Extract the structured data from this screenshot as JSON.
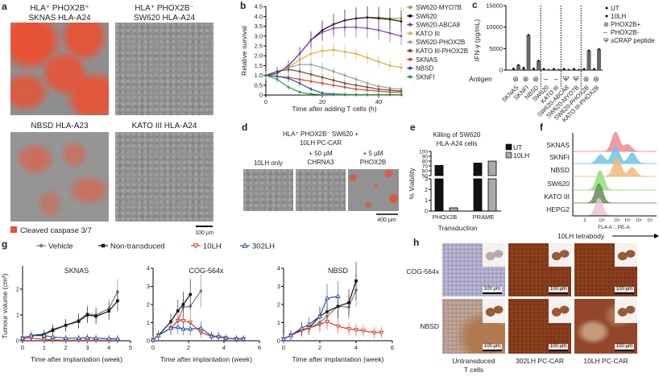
{
  "panel_labels": {
    "a": "a",
    "b": "b",
    "c": "c",
    "d": "d",
    "e": "e",
    "f": "f",
    "g": "g",
    "h": "h"
  },
  "panel_a": {
    "titles": [
      [
        "HLA⁺ PHOX2B⁺",
        "SKNAS HLA-A24"
      ],
      [
        "HLA⁺ PHOX2B⁻",
        "SW620 HLA-A24"
      ],
      [
        "NBSD HLA-A23"
      ],
      [
        "KATO III HLA-A24"
      ]
    ],
    "legend": "Cleaved caspase 3/7",
    "legend_color": "#e8502e",
    "scale_bar": "100 µm"
  },
  "panel_d": {
    "title": [
      "HLA⁺ PHOX2B⁻ SW620 +",
      "10LH  PC-CAR"
    ],
    "columns": [
      [
        "10LH only"
      ],
      [
        "+ 50 µM",
        "CHRNA3"
      ],
      [
        "+ 5 µM",
        "PHOX2B"
      ]
    ],
    "scale_bar": "400 µm"
  },
  "panel_h": {
    "rows": [
      "COG-564x",
      "NBSD"
    ],
    "columns": [
      [
        "Untransduced",
        "T cells"
      ],
      [
        "302LH PC-CAR"
      ],
      [
        "10LH PC-CAR"
      ]
    ],
    "scale_bar": "100 µm"
  },
  "chart_data": [
    {
      "id": "b",
      "type": "line",
      "xlabel": "Time after adding T cells (h)",
      "ylabel": "Relative survival",
      "xlim": [
        0,
        48
      ],
      "ylim": [
        0,
        4.5
      ],
      "xticks": [
        "0",
        "20",
        "40"
      ],
      "xtick_values": [
        0,
        20,
        40
      ],
      "yticks": [
        "0",
        "0.5",
        "1.0",
        "1.5",
        "2.0",
        "2.5",
        "3.0",
        "3.5",
        "4.0",
        "4.5"
      ],
      "ytick_values": [
        0,
        0.5,
        1,
        1.5,
        2,
        2.5,
        3,
        3.5,
        4,
        4.5
      ],
      "legend_position": "right",
      "x": [
        0,
        4,
        8,
        12,
        16,
        20,
        24,
        28,
        32,
        36,
        40,
        44,
        48
      ],
      "series": [
        {
          "name": "SW620-MYO7B",
          "color": "#a3a23a",
          "values": [
            1.0,
            1.1,
            1.5,
            2.1,
            2.8,
            3.3,
            3.6,
            3.8,
            3.9,
            3.95,
            3.95,
            3.9,
            3.9
          ]
        },
        {
          "name": "SW620",
          "color": "#111111",
          "values": [
            1.0,
            1.1,
            1.5,
            2.1,
            2.8,
            3.3,
            3.6,
            3.8,
            3.9,
            3.95,
            3.9,
            3.85,
            3.75
          ]
        },
        {
          "name": "SW620-ABCA8",
          "color": "#7b3fc0",
          "values": [
            1.0,
            1.1,
            1.5,
            2.1,
            2.8,
            3.2,
            3.4,
            3.45,
            3.45,
            3.4,
            3.3,
            3.15,
            3.0
          ]
        },
        {
          "name": "KATO III",
          "color": "#e8a92a",
          "values": [
            1.0,
            1.2,
            1.4,
            1.8,
            2.1,
            2.25,
            2.3,
            2.2,
            2.1,
            1.9,
            1.7,
            1.5,
            1.4
          ]
        },
        {
          "name": "SW620-PHOX2B",
          "color": "#9a9a9a",
          "values": [
            1.0,
            1.2,
            1.4,
            1.55,
            1.55,
            1.4,
            1.2,
            1.0,
            0.8,
            0.6,
            0.45,
            0.35,
            0.3
          ]
        },
        {
          "name": "KATO III-PHOX2B",
          "color": "#6b4a2a",
          "values": [
            1.0,
            1.2,
            1.3,
            1.2,
            1.05,
            0.9,
            0.75,
            0.6,
            0.5,
            0.4,
            0.3,
            0.25,
            0.2
          ]
        },
        {
          "name": "SKNAS",
          "color": "#d9452b",
          "values": [
            1.0,
            0.95,
            0.9,
            0.8,
            0.7,
            0.6,
            0.5,
            0.4,
            0.3,
            0.25,
            0.2,
            0.15,
            0.15
          ]
        },
        {
          "name": "NBSD",
          "color": "#2a4fb0",
          "values": [
            1.0,
            0.95,
            0.85,
            0.6,
            0.3,
            0.1,
            0.05,
            0.03,
            0.02,
            0.02,
            0.02,
            0.02,
            0.02
          ]
        },
        {
          "name": "SKNFI",
          "color": "#2d9a3a",
          "values": [
            1.0,
            0.8,
            0.4,
            0.15,
            0.05,
            0.02,
            0.01,
            0.01,
            0.01,
            0.01,
            0.01,
            0.01,
            0.01
          ]
        }
      ]
    },
    {
      "id": "c",
      "type": "bar",
      "ylabel": "IFN-γ (pg/mL)",
      "ylim": [
        0,
        15000
      ],
      "yticks": [
        "0",
        "5000",
        "10000",
        "15000"
      ],
      "ytick_values": [
        0,
        5000,
        10000,
        15000
      ],
      "categories": [
        "SKNAS",
        "SKNFI",
        "NBSD",
        "SW620",
        "KATO III",
        "SW620-ABCA8",
        "SW620-MYO7B",
        "SW620-PHOX2B",
        "KATO III-PHOX2B"
      ],
      "series": [
        {
          "name": "UT",
          "color": "#111111",
          "values": [
            400,
            600,
            400,
            300,
            300,
            300,
            300,
            300,
            300
          ]
        },
        {
          "name": "10LH",
          "color": "#555555",
          "values": [
            1200,
            8200,
            2200,
            100,
            100,
            100,
            100,
            4600,
            4900
          ]
        }
      ],
      "antigen_label": "Antigen",
      "antigen": [
        "PHOX2B+",
        "PHOX2B+",
        "PHOX2B+",
        "PHOX2B-",
        "PHOX2B-",
        "sCRAP peptide",
        "sCRAP peptide",
        "PHOX2B+",
        "PHOX2B+"
      ],
      "antigen_legend": [
        {
          "label": "PHOX2B+",
          "symbol": "⊛",
          "color": "#7f86d6"
        },
        {
          "label": "PHOX2B-",
          "symbol": "–",
          "color": "#d06a6a"
        },
        {
          "label": "sCRAP peptide",
          "symbol": "Ψ",
          "color": "#d06a8a"
        }
      ],
      "legend_position": "right"
    },
    {
      "id": "e",
      "type": "bar",
      "title": [
        "Killing of SW620",
        "HLA-A24 cells"
      ],
      "ylabel": "% Viability",
      "xlabel": "Transduction",
      "y_broken": true,
      "yticks_upper": [
        "50",
        "60",
        "70",
        "80",
        "90",
        "100"
      ],
      "yticks_lower": [
        "0",
        "1",
        "2",
        "3"
      ],
      "categories": [
        "PHOX2B",
        "PRAME"
      ],
      "series": [
        {
          "name": "UT",
          "color": "#111111",
          "values": [
            71,
            76
          ]
        },
        {
          "name": "10LH",
          "color": "#aaaaaa",
          "values": [
            0.3,
            80
          ]
        }
      ],
      "legend_position": "top-right"
    },
    {
      "id": "f",
      "type": "histogram",
      "xlabel": "FL4-A :: PE-A",
      "axis_caption": "10LH tetrabody",
      "xticks": [
        "0",
        "10³",
        "10⁴",
        "10⁵",
        "10⁶",
        "10⁷"
      ],
      "samples": [
        {
          "name": "SKNAS",
          "color": "#f08a8f",
          "peaks_log10": [
            [
              3.9,
              1.0
            ],
            [
              5.0,
              0.35
            ]
          ]
        },
        {
          "name": "SKNFI",
          "color": "#6cc6ea",
          "peaks_log10": [
            [
              3.9,
              0.9
            ],
            [
              2.8,
              0.45
            ],
            [
              5.4,
              0.55
            ]
          ]
        },
        {
          "name": "NBSD",
          "color": "#f2b77a",
          "peaks_log10": [
            [
              4.0,
              1.0
            ],
            [
              5.4,
              0.45
            ]
          ]
        },
        {
          "name": "SW620",
          "color": "#8fe07a",
          "peaks_log10": [
            [
              2.7,
              1.0
            ]
          ]
        },
        {
          "name": "KATO III",
          "color": "#6a8c5a",
          "peaks_log10": [
            [
              2.5,
              1.0
            ]
          ]
        },
        {
          "name": "HEPG2",
          "color": "#e8c8cc",
          "peaks_log10": [
            [
              2.5,
              0.9
            ]
          ]
        }
      ]
    },
    {
      "id": "g1",
      "type": "line",
      "title": "SKNAS",
      "xlabel": "Time after implantation (week)",
      "ylabel": "Tumour volume (cm³)",
      "xlim": [
        0,
        5
      ],
      "ylim": [
        0,
        2.8
      ],
      "xticks": [
        "0",
        "1",
        "2",
        "3",
        "4",
        "5"
      ],
      "xtick_values": [
        0,
        1,
        2,
        3,
        4,
        5
      ],
      "yticks": [
        "0",
        "1",
        "2"
      ],
      "ytick_values": [
        0,
        1,
        2
      ],
      "series": [
        {
          "name": "Vehicle",
          "color": "#7a7a7a",
          "marker": "circle",
          "x": [
            0,
            0.4,
            1,
            1.4,
            2,
            2.6,
            3,
            3.4,
            4,
            4.4
          ],
          "values": [
            0.1,
            0.2,
            0.25,
            0.45,
            0.6,
            0.8,
            1.05,
            1.0,
            1.25,
            1.9
          ]
        },
        {
          "name": "Non-transduced",
          "color": "#111111",
          "marker": "square",
          "x": [
            0,
            0.4,
            1,
            1.4,
            2,
            2.6,
            3,
            3.4,
            4,
            4.4
          ],
          "values": [
            0.1,
            0.2,
            0.25,
            0.4,
            0.6,
            0.75,
            1.0,
            0.95,
            1.15,
            1.55
          ]
        },
        {
          "name": "10LH",
          "color": "#d9452b",
          "marker": "triangle-down",
          "x": [
            0,
            0.4,
            1,
            1.4,
            2,
            2.6,
            3,
            3.4,
            4,
            4.4
          ],
          "values": [
            0.1,
            0.1,
            0.05,
            0.03,
            0.02,
            0.02,
            0.02,
            0.02,
            0.02,
            0.02
          ]
        },
        {
          "name": "302LH",
          "color": "#2a4fb0",
          "marker": "triangle-up",
          "x": [
            0,
            0.4,
            1,
            1.4,
            2,
            2.6,
            3,
            3.4,
            4,
            4.4
          ],
          "values": [
            0.1,
            0.2,
            0.2,
            0.15,
            0.1,
            0.1,
            0.12,
            0.1,
            0.08,
            0.08
          ]
        }
      ]
    },
    {
      "id": "g2",
      "type": "line",
      "title": "COG-564x",
      "xlabel": "Time after implantation (week)",
      "xlim": [
        0,
        6
      ],
      "ylim": [
        0,
        4
      ],
      "xticks": [
        "0",
        "2",
        "4",
        "6"
      ],
      "xtick_values": [
        0,
        2,
        4,
        6
      ],
      "yticks": [
        "0",
        "1",
        "2",
        "3",
        "4"
      ],
      "ytick_values": [
        0,
        1,
        2,
        3,
        4
      ],
      "series": [
        {
          "name": "Vehicle",
          "color": "#7a7a7a",
          "marker": "circle",
          "x": [
            0,
            0.3,
            1,
            1.4,
            1.7,
            2.1,
            2.7
          ],
          "values": [
            0.05,
            0.3,
            0.7,
            1.1,
            1.85,
            1.9,
            2.75
          ]
        },
        {
          "name": "Non-transduced",
          "color": "#111111",
          "marker": "square",
          "x": [
            0,
            0.3,
            1,
            1.4,
            1.7,
            2.1
          ],
          "values": [
            0.05,
            0.3,
            1.05,
            1.65,
            2.0,
            2.55
          ]
        },
        {
          "name": "10LH",
          "color": "#d9452b",
          "marker": "triangle-down",
          "x": [
            0,
            0.3,
            1,
            1.4,
            1.7,
            2.1,
            2.7,
            3.3,
            3.7,
            4.1,
            4.7,
            5.1
          ],
          "values": [
            0.05,
            0.3,
            0.7,
            1.1,
            1.1,
            1.0,
            0.45,
            0.25,
            0.2,
            0.15,
            0.1,
            0.1
          ]
        },
        {
          "name": "302LH",
          "color": "#2a4fb0",
          "marker": "triangle-up",
          "x": [
            0,
            0.3,
            1,
            1.4,
            1.7,
            2.1,
            2.7,
            3.3,
            3.7,
            4.1,
            4.7,
            5.1
          ],
          "values": [
            0.05,
            0.3,
            0.7,
            0.75,
            0.65,
            0.65,
            0.7,
            0.25,
            0.25,
            0.15,
            0.1,
            0.1
          ]
        }
      ]
    },
    {
      "id": "g3",
      "type": "line",
      "title": "NBSD",
      "xlabel": "Time after implantation (week)",
      "xlim": [
        0,
        6
      ],
      "ylim": [
        0,
        4
      ],
      "xticks": [
        "0",
        "2",
        "4",
        "6"
      ],
      "xtick_values": [
        0,
        2,
        4,
        6
      ],
      "yticks": [
        "0",
        "1",
        "2",
        "3",
        "4"
      ],
      "ytick_values": [
        0,
        1,
        2,
        3,
        4
      ],
      "series": [
        {
          "name": "Vehicle",
          "color": "#7a7a7a",
          "marker": "circle",
          "x": [
            0,
            0.4,
            1,
            1.4,
            2,
            2.4,
            3,
            3.6,
            4
          ],
          "values": [
            0.1,
            0.3,
            0.6,
            0.7,
            1.0,
            1.35,
            1.9,
            1.85,
            2.8
          ]
        },
        {
          "name": "Non-transduced",
          "color": "#111111",
          "marker": "square",
          "x": [
            0,
            0.4,
            1,
            1.4,
            2,
            2.4,
            3,
            3.6,
            4
          ],
          "values": [
            0.1,
            0.3,
            0.6,
            0.7,
            1.35,
            1.6,
            1.9,
            2.1,
            3.3
          ]
        },
        {
          "name": "10LH",
          "color": "#d9452b",
          "marker": "triangle-down",
          "x": [
            0,
            0.4,
            1,
            1.4,
            2,
            2.4,
            3,
            3.6,
            4,
            4.4,
            5,
            5.4
          ],
          "values": [
            0.1,
            0.3,
            0.55,
            0.7,
            0.9,
            1.05,
            0.8,
            0.65,
            0.6,
            0.55,
            0.45,
            0.45
          ]
        },
        {
          "name": "302LH",
          "color": "#2a4fb0",
          "marker": "triangle-up",
          "x": [
            0,
            0.4,
            1,
            1.4,
            2,
            2.4,
            3
          ],
          "values": [
            0.1,
            0.3,
            0.7,
            0.9,
            1.35,
            2.35,
            2.45
          ]
        }
      ]
    }
  ],
  "g_legend": [
    {
      "label": "Vehicle",
      "color": "#7a7a7a",
      "marker": "circle"
    },
    {
      "label": "Non-transduced",
      "color": "#111111",
      "marker": "square"
    },
    {
      "label": "10LH",
      "color": "#d9452b",
      "marker": "triangle-down"
    },
    {
      "label": "302LH",
      "color": "#2a4fb0",
      "marker": "triangle-up"
    }
  ]
}
